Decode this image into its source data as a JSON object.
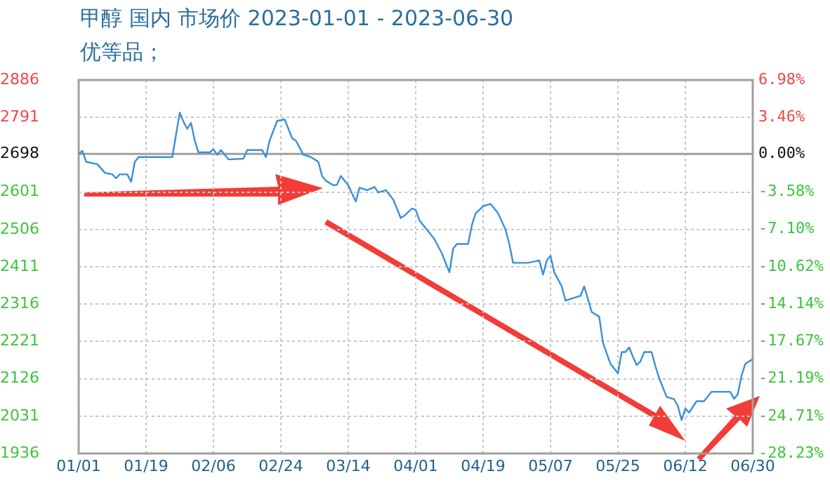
{
  "chart_data": {
    "type": "line",
    "title": "甲醇 国内 市场价 2023-01-01 - 2023-06-30",
    "subtitle": "优等品；",
    "x": [
      "2023-01-01",
      "2023-01-02",
      "2023-01-03",
      "2023-01-06",
      "2023-01-08",
      "2023-01-10",
      "2023-01-11",
      "2023-01-12",
      "2023-01-14",
      "2023-01-15",
      "2023-01-16",
      "2023-01-17",
      "2023-01-26",
      "2023-01-28",
      "2023-01-29",
      "2023-01-30",
      "2023-01-31",
      "2023-02-01",
      "2023-02-02",
      "2023-02-05",
      "2023-02-06",
      "2023-02-07",
      "2023-02-08",
      "2023-02-10",
      "2023-02-14",
      "2023-02-15",
      "2023-02-19",
      "2023-02-20",
      "2023-02-21",
      "2023-02-23",
      "2023-02-25",
      "2023-02-27",
      "2023-02-28",
      "2023-03-02",
      "2023-03-04",
      "2023-03-06",
      "2023-03-07",
      "2023-03-08",
      "2023-03-10",
      "2023-03-11",
      "2023-03-12",
      "2023-03-14",
      "2023-03-16",
      "2023-03-17",
      "2023-03-19",
      "2023-03-21",
      "2023-03-22",
      "2023-03-24",
      "2023-03-26",
      "2023-03-28",
      "2023-03-29",
      "2023-03-31",
      "2023-04-01",
      "2023-04-02",
      "2023-04-04",
      "2023-04-06",
      "2023-04-08",
      "2023-04-10",
      "2023-04-11",
      "2023-04-12",
      "2023-04-15",
      "2023-04-16",
      "2023-04-17",
      "2023-04-19",
      "2023-04-21",
      "2023-04-23",
      "2023-04-25",
      "2023-04-26",
      "2023-04-27",
      "2023-05-01",
      "2023-05-04",
      "2023-05-05",
      "2023-05-06",
      "2023-05-07",
      "2023-05-08",
      "2023-05-10",
      "2023-05-11",
      "2023-05-15",
      "2023-05-16",
      "2023-05-18",
      "2023-05-20",
      "2023-05-21",
      "2023-05-23",
      "2023-05-25",
      "2023-05-26",
      "2023-05-27",
      "2023-05-28",
      "2023-05-29",
      "2023-05-30",
      "2023-05-31",
      "2023-06-01",
      "2023-06-03",
      "2023-06-04",
      "2023-06-05",
      "2023-06-07",
      "2023-06-09",
      "2023-06-10",
      "2023-06-11",
      "2023-06-12",
      "2023-06-13",
      "2023-06-15",
      "2023-06-17",
      "2023-06-19",
      "2023-06-20",
      "2023-06-24",
      "2023-06-25",
      "2023-06-26",
      "2023-06-27",
      "2023-06-28",
      "2023-06-30"
    ],
    "series": [
      {
        "color": "#3a8fd8",
        "values": [
          2698,
          2706,
          2678,
          2672,
          2650,
          2646,
          2636,
          2646,
          2646,
          2627,
          2678,
          2690,
          2690,
          2803,
          2780,
          2762,
          2777,
          2732,
          2702,
          2702,
          2710,
          2696,
          2708,
          2684,
          2686,
          2708,
          2708,
          2690,
          2732,
          2782,
          2786,
          2738,
          2732,
          2696,
          2690,
          2678,
          2642,
          2630,
          2618,
          2620,
          2642,
          2618,
          2577,
          2612,
          2606,
          2614,
          2600,
          2606,
          2582,
          2535,
          2541,
          2559,
          2556,
          2529,
          2505,
          2481,
          2445,
          2397,
          2457,
          2469,
          2469,
          2517,
          2547,
          2565,
          2571,
          2547,
          2505,
          2469,
          2421,
          2421,
          2427,
          2391,
          2427,
          2439,
          2397,
          2361,
          2325,
          2337,
          2361,
          2296,
          2284,
          2218,
          2164,
          2140,
          2194,
          2194,
          2206,
          2182,
          2161,
          2170,
          2194,
          2194,
          2158,
          2128,
          2080,
          2074,
          2057,
          2021,
          2050,
          2040,
          2069,
          2069,
          2093,
          2093,
          2093,
          2075,
          2087,
          2134,
          2164,
          2176
        ]
      }
    ],
    "xlim": [
      "2023-01-01",
      "2023-06-30"
    ],
    "xticks": [
      {
        "value": "2023-01-01",
        "label": "01/01"
      },
      {
        "value": "2023-01-19",
        "label": "01/19"
      },
      {
        "value": "2023-02-06",
        "label": "02/06"
      },
      {
        "value": "2023-02-24",
        "label": "02/24"
      },
      {
        "value": "2023-03-14",
        "label": "03/14"
      },
      {
        "value": "2023-04-01",
        "label": "04/01"
      },
      {
        "value": "2023-04-19",
        "label": "04/19"
      },
      {
        "value": "2023-05-07",
        "label": "05/07"
      },
      {
        "value": "2023-05-25",
        "label": "05/25"
      },
      {
        "value": "2023-06-12",
        "label": "06/12"
      },
      {
        "value": "2023-06-30",
        "label": "06/30"
      }
    ],
    "ylim": [
      1936,
      2886
    ],
    "yticks": [
      1936,
      2031,
      2126,
      2221,
      2316,
      2411,
      2506,
      2601,
      2698,
      2791,
      2886
    ],
    "y2lim": [
      -28.23,
      6.98
    ],
    "y2ticks": [
      {
        "value": -28.23,
        "label": "-28.23%"
      },
      {
        "value": -24.71,
        "label": "-24.71%"
      },
      {
        "value": -21.19,
        "label": "-21.19%"
      },
      {
        "value": -17.67,
        "label": "-17.67%"
      },
      {
        "value": -14.14,
        "label": "-14.14%"
      },
      {
        "value": -10.62,
        "label": "-10.62%"
      },
      {
        "value": -7.1,
        "label": "-7.10%"
      },
      {
        "value": -3.58,
        "label": "-3.58%"
      },
      {
        "value": 0,
        "label": "0.00%"
      },
      {
        "value": 3.46,
        "label": "3.46%"
      },
      {
        "value": 6.98,
        "label": "6.98%"
      }
    ],
    "ref_lines": [
      {
        "axis": "y",
        "value": 2698,
        "color": "#a0a0a0"
      }
    ],
    "grid": true
  }
}
